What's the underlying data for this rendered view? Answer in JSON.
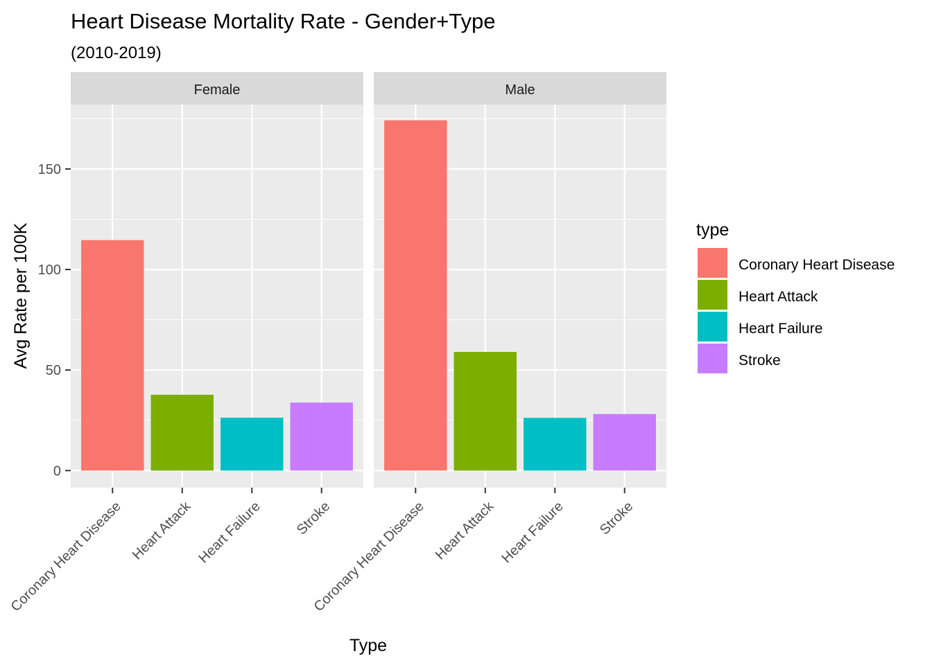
{
  "chart_data": {
    "type": "bar",
    "title": "Heart Disease Mortality Rate - Gender+Type",
    "subtitle": "(2010-2019)",
    "xlabel": "Type",
    "ylabel": "Avg Rate per 100K",
    "ylim": [
      -8.5,
      182
    ],
    "yticks": [
      0,
      50,
      100,
      150
    ],
    "ytick_labels": [
      "0",
      "50",
      "100",
      "150"
    ],
    "categories": [
      "Coronary Heart Disease",
      "Heart Attack",
      "Heart Failure",
      "Stroke"
    ],
    "facets": [
      {
        "name": "Female",
        "values": [
          114.6,
          37.7,
          26.3,
          33.8
        ]
      },
      {
        "name": "Male",
        "values": [
          174.2,
          59.0,
          26.2,
          28.1
        ]
      }
    ],
    "colors": [
      "#F8766D",
      "#7CAE00",
      "#00BFC4",
      "#C77CFF"
    ],
    "grid": true,
    "legend": {
      "title": "type",
      "position": "right",
      "entries": [
        "Coronary Heart Disease",
        "Heart Attack",
        "Heart Failure",
        "Stroke"
      ]
    },
    "panel_background": "#EBEBEB",
    "strip_background": "#D9D9D9"
  }
}
